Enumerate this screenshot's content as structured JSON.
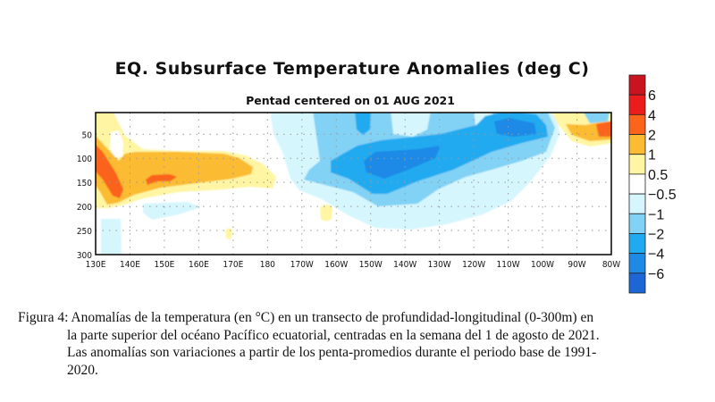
{
  "chart_data": {
    "type": "heatmap",
    "title": "EQ. Subsurface Temperature Anomalies (deg C)",
    "subtitle": "Pentad centered on 01 AUG 2021",
    "x_ticks": [
      "130E",
      "140E",
      "150E",
      "160E",
      "170E",
      "180",
      "170W",
      "160W",
      "150W",
      "140W",
      "130W",
      "120W",
      "110W",
      "100W",
      "90W",
      "80W"
    ],
    "x_range_deg_east": [
      130,
      280
    ],
    "y_ticks": [
      "50",
      "100",
      "150",
      "200",
      "250",
      "300"
    ],
    "y_range_m": [
      5,
      300
    ],
    "y_inverted": true,
    "grid": "dotted",
    "colorbar": {
      "placement": "right",
      "labels": [
        "6",
        "4",
        "2",
        "1",
        "0.5",
        "−0.5",
        "−1",
        "−2",
        "−4",
        "−6"
      ],
      "colors": [
        "#c8141e",
        "#ec1c1c",
        "#fb641a",
        "#fbbb32",
        "#fff5a3",
        "#ffffff",
        "#d5f6fd",
        "#82d2f6",
        "#20aaf0",
        "#1e8ae6",
        "#1d66d6"
      ]
    },
    "features": [
      {
        "region": "130E-180, 100-200 m",
        "anomaly": "+1 to +2, locally +2 to +4 near 130-137E and 145-153E"
      },
      {
        "region": "170W-100W, 0-250 m",
        "anomaly": "-0.5 to -4, core -4 near 150W-130W at ~110-140 m"
      },
      {
        "region": "90W-80W, 25-75 m",
        "anomaly": "+0.5 to +4"
      }
    ]
  },
  "caption": {
    "line1": "Figura 4: Anomalías de la temperatura (en °C) en un transecto de profundidad-longitudinal (0-300m) en",
    "line2": "la parte superior del océano Pacífico ecuatorial, centradas en la semana del 1 de agosto de 2021.",
    "line3": "Las anomalías son variaciones a partir de los penta-promedios durante el periodo base de 1991-",
    "line4": "2020."
  }
}
